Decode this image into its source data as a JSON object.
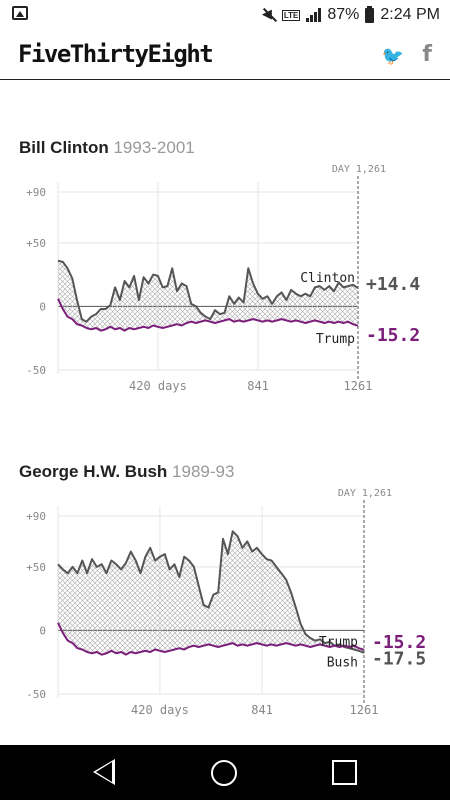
{
  "status_bar": {
    "battery": "87%",
    "time": "2:24 PM",
    "network": "LTE",
    "icons": [
      "image-icon",
      "mute-icon",
      "lte-icon",
      "signal-icon",
      "battery-icon"
    ]
  },
  "header": {
    "logo": "FiveThirtyEight",
    "twitter_glyph": "🐦",
    "facebook_glyph": "f",
    "icons": [
      "twitter-icon",
      "facebook-icon"
    ]
  },
  "nav": {
    "icons": [
      "back-icon",
      "home-icon",
      "recents-icon"
    ]
  },
  "colors": {
    "president": "#555555",
    "trump": "#7b1e7a",
    "grid": "#e5e5e5",
    "axis_text": "#888888"
  },
  "chart_data": [
    {
      "type": "line",
      "title": "Bill Clinton",
      "subtitle": "1993-2001",
      "marker_label": "DAY 1,261",
      "x_ticks": [
        420,
        841,
        1261
      ],
      "x_tick_labels": [
        "420 days",
        "841",
        "1261"
      ],
      "y_ticks": [
        90,
        50,
        0,
        -50
      ],
      "y_tick_labels": [
        "+90",
        "+50",
        "0",
        "-50"
      ],
      "xlim": [
        0,
        1261
      ],
      "ylim": [
        -50,
        90
      ],
      "fill_between": true,
      "series": [
        {
          "name": "Clinton",
          "final_label": "+14.4",
          "x": [
            0,
            20,
            40,
            60,
            80,
            100,
            120,
            140,
            160,
            180,
            200,
            220,
            240,
            260,
            280,
            300,
            320,
            340,
            360,
            380,
            400,
            420,
            440,
            460,
            480,
            500,
            520,
            540,
            560,
            580,
            600,
            620,
            640,
            660,
            680,
            700,
            720,
            740,
            760,
            780,
            800,
            820,
            840,
            860,
            880,
            900,
            920,
            940,
            960,
            980,
            1000,
            1020,
            1040,
            1060,
            1080,
            1100,
            1120,
            1140,
            1160,
            1180,
            1200,
            1220,
            1240,
            1261
          ],
          "values": [
            36,
            35,
            30,
            22,
            5,
            -10,
            -12,
            -8,
            -6,
            -2,
            -2,
            1,
            15,
            5,
            20,
            15,
            24,
            5,
            23,
            18,
            25,
            24,
            15,
            16,
            30,
            12,
            18,
            16,
            2,
            0,
            -5,
            -8,
            -10,
            -3,
            -6,
            -5,
            8,
            2,
            7,
            3,
            30,
            18,
            10,
            6,
            8,
            2,
            8,
            11,
            5,
            13,
            10,
            8,
            10,
            8,
            15,
            16,
            13,
            16,
            12,
            19,
            15,
            16,
            17,
            14.4
          ]
        },
        {
          "name": "Trump",
          "final_label": "-15.2",
          "x": [
            0,
            20,
            40,
            60,
            80,
            100,
            120,
            140,
            160,
            180,
            200,
            220,
            240,
            260,
            280,
            300,
            320,
            340,
            360,
            380,
            400,
            420,
            440,
            460,
            480,
            500,
            520,
            540,
            560,
            580,
            600,
            620,
            640,
            660,
            680,
            700,
            720,
            740,
            760,
            780,
            800,
            820,
            840,
            860,
            880,
            900,
            920,
            940,
            960,
            980,
            1000,
            1020,
            1040,
            1060,
            1080,
            1100,
            1120,
            1140,
            1160,
            1180,
            1200,
            1220,
            1240,
            1261
          ],
          "values": [
            6,
            -2,
            -8,
            -10,
            -14,
            -15,
            -17,
            -18,
            -17,
            -19,
            -18,
            -16,
            -18,
            -17,
            -19,
            -17,
            -18,
            -17,
            -16,
            -17,
            -15,
            -16,
            -17,
            -16,
            -15,
            -14,
            -15,
            -13,
            -12,
            -13,
            -12,
            -11,
            -12,
            -13,
            -12,
            -11,
            -10,
            -12,
            -11,
            -12,
            -11,
            -10,
            -11,
            -12,
            -11,
            -12,
            -11,
            -10,
            -11,
            -12,
            -11,
            -12,
            -13,
            -12,
            -11,
            -12,
            -13,
            -12,
            -13,
            -12,
            -13,
            -12,
            -14,
            -15.2
          ]
        }
      ]
    },
    {
      "type": "line",
      "title": "George H.W. Bush",
      "subtitle": "1989-93",
      "marker_label": "DAY 1,261",
      "x_ticks": [
        420,
        841,
        1261
      ],
      "x_tick_labels": [
        "420 days",
        "841",
        "1261"
      ],
      "y_ticks": [
        90,
        50,
        0,
        -50
      ],
      "y_tick_labels": [
        "+90",
        "+50",
        "0",
        "-50"
      ],
      "xlim": [
        0,
        1261
      ],
      "ylim": [
        -50,
        90
      ],
      "fill_between": true,
      "series": [
        {
          "name": "Bush",
          "final_label": "-17.5",
          "x": [
            0,
            20,
            40,
            60,
            80,
            100,
            120,
            140,
            160,
            180,
            200,
            220,
            240,
            260,
            280,
            300,
            320,
            340,
            360,
            380,
            400,
            420,
            440,
            460,
            480,
            500,
            520,
            540,
            560,
            580,
            600,
            620,
            640,
            660,
            680,
            700,
            720,
            740,
            760,
            780,
            800,
            820,
            840,
            860,
            880,
            900,
            920,
            940,
            960,
            980,
            1000,
            1020,
            1040,
            1060,
            1080,
            1100,
            1120,
            1140,
            1160,
            1180,
            1200,
            1220,
            1240,
            1261
          ],
          "values": [
            52,
            48,
            45,
            50,
            45,
            55,
            45,
            56,
            50,
            52,
            45,
            55,
            52,
            48,
            53,
            62,
            55,
            45,
            58,
            65,
            55,
            58,
            60,
            48,
            52,
            42,
            58,
            55,
            50,
            35,
            20,
            18,
            28,
            30,
            72,
            60,
            78,
            74,
            65,
            70,
            62,
            65,
            60,
            56,
            55,
            50,
            45,
            40,
            30,
            18,
            5,
            -3,
            -6,
            -8,
            -7,
            -10,
            -9,
            -12,
            -11,
            -13,
            -14,
            -15,
            -16,
            -17.5
          ]
        },
        {
          "name": "Trump",
          "final_label": "-15.2",
          "x": [
            0,
            20,
            40,
            60,
            80,
            100,
            120,
            140,
            160,
            180,
            200,
            220,
            240,
            260,
            280,
            300,
            320,
            340,
            360,
            380,
            400,
            420,
            440,
            460,
            480,
            500,
            520,
            540,
            560,
            580,
            600,
            620,
            640,
            660,
            680,
            700,
            720,
            740,
            760,
            780,
            800,
            820,
            840,
            860,
            880,
            900,
            920,
            940,
            960,
            980,
            1000,
            1020,
            1040,
            1060,
            1080,
            1100,
            1120,
            1140,
            1160,
            1180,
            1200,
            1220,
            1240,
            1261
          ],
          "values": [
            6,
            -2,
            -8,
            -10,
            -14,
            -15,
            -17,
            -18,
            -17,
            -19,
            -18,
            -16,
            -18,
            -17,
            -19,
            -17,
            -18,
            -17,
            -16,
            -17,
            -15,
            -16,
            -17,
            -16,
            -15,
            -14,
            -15,
            -13,
            -12,
            -13,
            -12,
            -11,
            -12,
            -13,
            -12,
            -11,
            -10,
            -12,
            -11,
            -12,
            -11,
            -10,
            -11,
            -12,
            -11,
            -12,
            -11,
            -10,
            -11,
            -12,
            -11,
            -12,
            -13,
            -12,
            -11,
            -12,
            -13,
            -12,
            -13,
            -12,
            -13,
            -12,
            -14,
            -15.2
          ]
        }
      ]
    }
  ]
}
